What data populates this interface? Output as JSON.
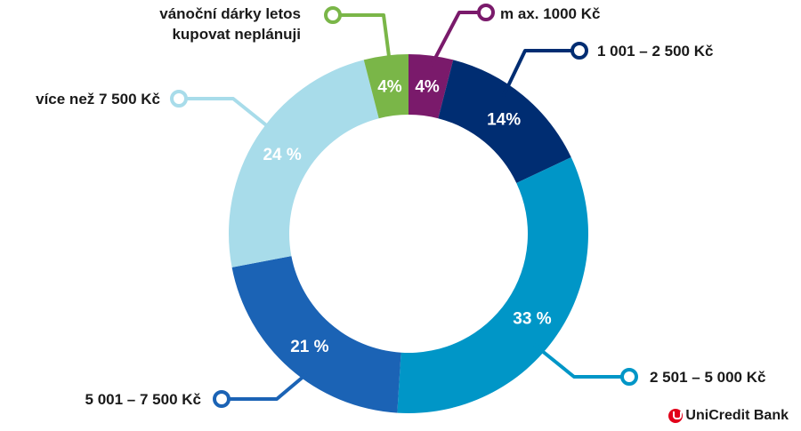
{
  "chart_data": {
    "type": "pie",
    "donut": true,
    "title": "",
    "segments": [
      {
        "label": "m ax. 1000 Kč",
        "value": 4,
        "value_label": "4%",
        "color": "#7a1a6b"
      },
      {
        "label": "1 001 – 2 500 Kč",
        "value": 14,
        "value_label": "14%",
        "color": "#002d72"
      },
      {
        "label": "2 501 – 5 000 Kč",
        "value": 33,
        "value_label": "33 %",
        "color": "#0096c7"
      },
      {
        "label": "5 001 – 7 500 Kč",
        "value": 21,
        "value_label": "21 %",
        "color": "#1b63b5"
      },
      {
        "label": "více než 7 500 Kč",
        "value": 24,
        "value_label": "24 %",
        "color": "#a8dcea"
      },
      {
        "label": "vánoční dárky letos\nkupovat neplánuji",
        "value": 4,
        "value_label": "4%",
        "color": "#7ab648"
      }
    ]
  },
  "brand": {
    "logo_text": "UniCredit Bank",
    "logo_color": "#e2001a"
  }
}
